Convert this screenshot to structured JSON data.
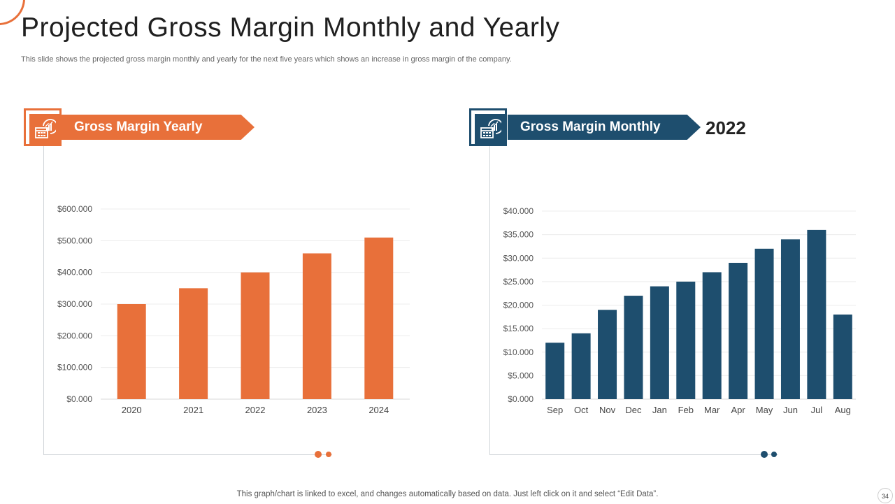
{
  "title": "Projected Gross Margin Monthly and Yearly",
  "subtitle": "This slide shows the projected gross margin monthly and yearly for the next five years which shows an increase in gross margin of the company.",
  "left_panel": {
    "banner": "Gross Margin Yearly"
  },
  "right_panel": {
    "banner": "Gross Margin Monthly",
    "year": "2022"
  },
  "footnote": "This graph/chart is linked to excel,  and changes automatically based on data. Just left click on it and select “Edit Data”.",
  "page_number": "34",
  "colors": {
    "orange": "#E8703A",
    "blue": "#1E4E6E"
  },
  "icons": [
    "calendar-chart-icon",
    "calendar-chart-icon"
  ],
  "chart_data": [
    {
      "type": "bar",
      "title": "Gross Margin Yearly",
      "categories": [
        "2020",
        "2021",
        "2022",
        "2023",
        "2024"
      ],
      "values": [
        300000,
        350000,
        400000,
        460000,
        510000
      ],
      "yticks": [
        0,
        100000,
        200000,
        300000,
        400000,
        500000,
        600000
      ],
      "ytick_labels": [
        "$0.000",
        "$100.000",
        "$200.000",
        "$300.000",
        "$400.000",
        "$500.000",
        "$600.000"
      ],
      "ylim": [
        0,
        600000
      ],
      "grid": true,
      "color": "#E8703A"
    },
    {
      "type": "bar",
      "title": "Gross Margin Monthly",
      "categories": [
        "Sep",
        "Oct",
        "Nov",
        "Dec",
        "Jan",
        "Feb",
        "Mar",
        "Apr",
        "May",
        "Jun",
        "Jul",
        "Aug"
      ],
      "values": [
        12000,
        14000,
        19000,
        22000,
        24000,
        25000,
        27000,
        29000,
        32000,
        34000,
        36000,
        18000
      ],
      "yticks": [
        0,
        5000,
        10000,
        15000,
        20000,
        25000,
        30000,
        35000,
        40000
      ],
      "ytick_labels": [
        "$0.000",
        "$5.000",
        "$10.000",
        "$15.000",
        "$20.000",
        "$25.000",
        "$30.000",
        "$35.000",
        "$40.000"
      ],
      "ylim": [
        0,
        40000
      ],
      "grid": true,
      "color": "#1E4E6E"
    }
  ]
}
